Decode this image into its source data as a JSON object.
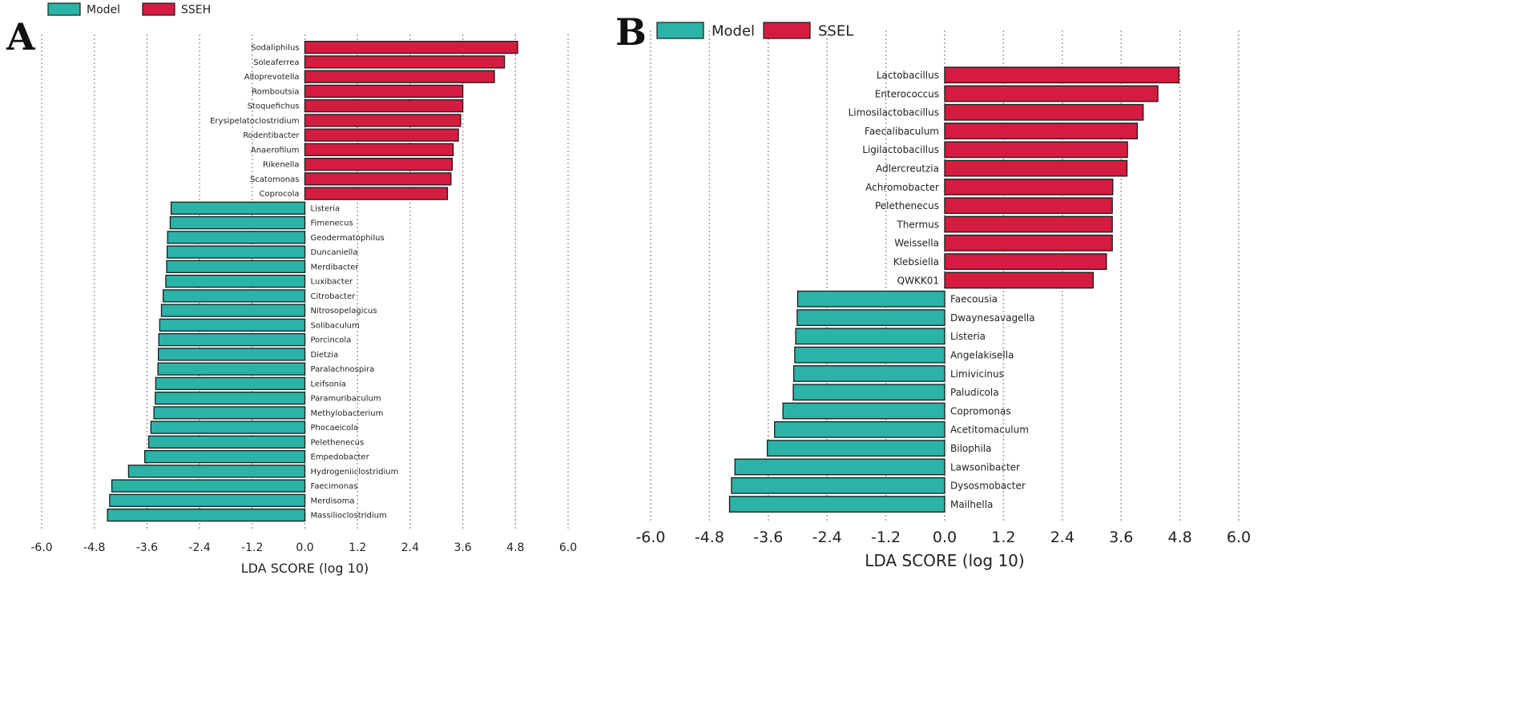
{
  "colors": {
    "model": "#2ab3a6",
    "group": "#d41c40",
    "grid": "#9a9a9a",
    "bar_edge": "#1b1b1b"
  },
  "chart_data": [
    {
      "type": "bar",
      "orientation": "horizontal",
      "panel_label": "A",
      "legend": [
        "Model",
        "SSEH"
      ],
      "xlabel": "LDA SCORE (log 10)",
      "ylabel": "",
      "xlim": [
        -6.0,
        6.0
      ],
      "xticks": [
        "-6.0",
        "-4.8",
        "-3.6",
        "-2.4",
        "-1.2",
        "0.0",
        "1.2",
        "2.4",
        "3.6",
        "4.8",
        "6.0"
      ],
      "grid": true,
      "series": [
        {
          "name": "SSEH",
          "categories": [
            "Sodaliphilus",
            "Soleaferrea",
            "Alloprevotella",
            "Romboutsia",
            "Stoquefichus",
            "Erysipelatoclostridium",
            "Rodentibacter",
            "Anaerofilum",
            "Rikenella",
            "Scatomonas",
            "Coprocola"
          ],
          "values": [
            4.85,
            4.55,
            4.32,
            3.6,
            3.6,
            3.55,
            3.5,
            3.38,
            3.36,
            3.33,
            3.25
          ]
        },
        {
          "name": "Model",
          "categories": [
            "Listeria",
            "Fimenecus",
            "Geodermatophilus",
            "Duncaniella",
            "Merdibacter",
            "Luxibacter",
            "Citrobacter",
            "Nitrosopelagicus",
            "Solibaculum",
            "Porcincola",
            "Dietzia",
            "Paralachnospira",
            "Leifsonia",
            "Paramuribaculum",
            "Methylobacterium",
            "Phocaeicola",
            "Pelethenecus",
            "Empedobacter",
            "Hydrogeniiclostridium",
            "Faecimonas",
            "Merdisoma",
            "Massilioclostridium"
          ],
          "values": [
            -3.05,
            -3.07,
            -3.13,
            -3.14,
            -3.15,
            -3.17,
            -3.23,
            -3.27,
            -3.31,
            -3.33,
            -3.34,
            -3.35,
            -3.4,
            -3.41,
            -3.44,
            -3.51,
            -3.56,
            -3.65,
            -4.02,
            -4.4,
            -4.45,
            -4.5
          ]
        }
      ]
    },
    {
      "type": "bar",
      "orientation": "horizontal",
      "panel_label": "B",
      "legend": [
        "Model",
        "SSEL"
      ],
      "xlabel": "LDA SCORE (log 10)",
      "ylabel": "",
      "xlim": [
        -6.0,
        6.0
      ],
      "xticks": [
        "-6.0",
        "-4.8",
        "-3.6",
        "-2.4",
        "-1.2",
        "0.0",
        "1.2",
        "2.4",
        "3.6",
        "4.8",
        "6.0"
      ],
      "grid": true,
      "series": [
        {
          "name": "SSEL",
          "categories": [
            "Lactobacillus",
            "Enterococcus",
            "Limosilactobacillus",
            "Faecalibaculum",
            "Ligilactobacillus",
            "Adlercreutzia",
            "Achromobacter",
            "Pelethenecus",
            "Thermus",
            "Weissella",
            "Klebsiella",
            "QWKK01"
          ],
          "values": [
            4.78,
            4.35,
            4.05,
            3.93,
            3.73,
            3.72,
            3.43,
            3.42,
            3.42,
            3.42,
            3.3,
            3.03
          ]
        },
        {
          "name": "Model",
          "categories": [
            "Faecousia",
            "Dwaynesavagella",
            "Listeria",
            "Angelakisella",
            "Limivicinus",
            "Paludicola",
            "Copromonas",
            "Acetitomaculum",
            "Bilophila",
            "Lawsonibacter",
            "Dysosmobacter",
            "Mailhella"
          ],
          "values": [
            -3.0,
            -3.01,
            -3.04,
            -3.06,
            -3.08,
            -3.09,
            -3.3,
            -3.47,
            -3.62,
            -4.28,
            -4.35,
            -4.39
          ]
        }
      ]
    }
  ]
}
